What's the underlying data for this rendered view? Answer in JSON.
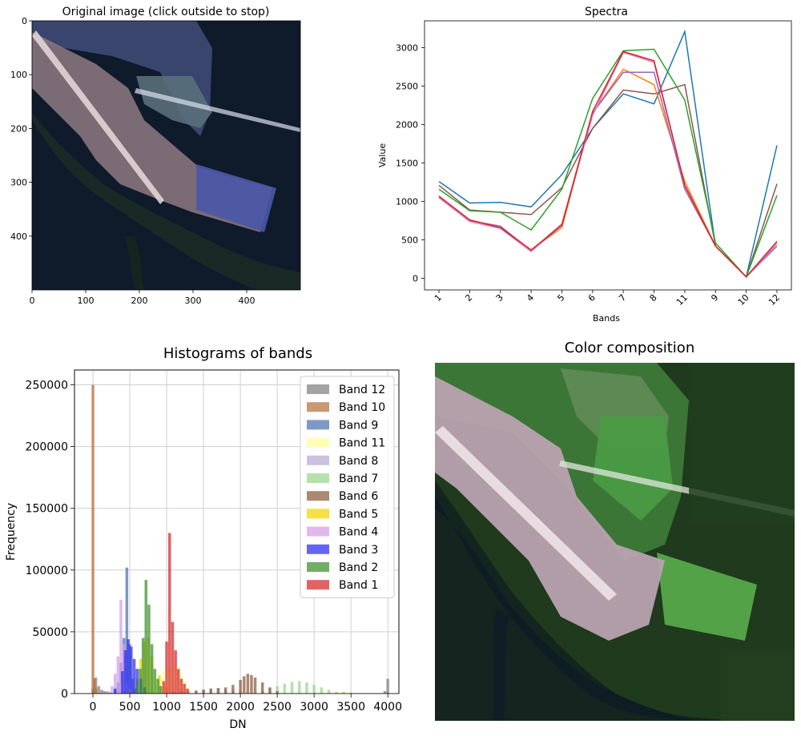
{
  "original_panel": {
    "title": "Original image (click outside to stop)",
    "x_ticks": [
      "0",
      "100",
      "200",
      "300",
      "400"
    ],
    "y_ticks": [
      "0",
      "100",
      "200",
      "300",
      "400"
    ]
  },
  "composition_panel": {
    "title": "Color composition"
  },
  "chart_data": [
    {
      "type": "line",
      "title": "Spectra",
      "xlabel": "Bands",
      "ylabel": "Value",
      "categories": [
        "1",
        "2",
        "3",
        "4",
        "5",
        "6",
        "7",
        "8",
        "11",
        "9",
        "10",
        "12"
      ],
      "ylim": [
        -150,
        3350
      ],
      "yticks": [
        0,
        500,
        1000,
        1500,
        2000,
        2500,
        3000
      ],
      "series": [
        {
          "color": "#1f77b4",
          "values": [
            1260,
            980,
            990,
            930,
            1350,
            1950,
            2400,
            2270,
            3210,
            420,
            20,
            1730
          ]
        },
        {
          "color": "#8c564b",
          "values": [
            1210,
            890,
            860,
            830,
            1180,
            1950,
            2450,
            2400,
            2520,
            420,
            20,
            1230
          ]
        },
        {
          "color": "#2ca02c",
          "values": [
            1160,
            880,
            860,
            630,
            1160,
            2340,
            2960,
            2980,
            2320,
            460,
            20,
            1080
          ]
        },
        {
          "color": "#ff7f0e",
          "values": [
            1060,
            760,
            660,
            370,
            660,
            2150,
            2720,
            2520,
            1260,
            420,
            20,
            480
          ]
        },
        {
          "color": "#9467bd",
          "values": [
            1050,
            750,
            680,
            360,
            710,
            2150,
            2680,
            2680,
            1160,
            420,
            20,
            420
          ]
        },
        {
          "color": "#e377c2",
          "values": [
            1050,
            740,
            650,
            350,
            700,
            2120,
            2940,
            2810,
            1200,
            420,
            20,
            450
          ]
        },
        {
          "color": "#d62728",
          "values": [
            1070,
            760,
            660,
            370,
            690,
            2170,
            2950,
            2830,
            1210,
            420,
            20,
            480
          ]
        }
      ]
    },
    {
      "type": "bar",
      "title": "Histograms of bands",
      "xlabel": "DN",
      "ylabel": "Frequency",
      "xlim": [
        -250,
        4150
      ],
      "ylim": [
        0,
        262000
      ],
      "xticks": [
        0,
        500,
        1000,
        1500,
        2000,
        2500,
        3000,
        3500,
        4000
      ],
      "yticks": [
        0,
        50000,
        100000,
        150000,
        200000,
        250000
      ],
      "grid": true,
      "legend_position": "top-right",
      "series": [
        {
          "name": "Band 12",
          "color": "#7f7f7f",
          "x": [
            0,
            40,
            80,
            120,
            160,
            200,
            240,
            3960,
            4000
          ],
          "values": [
            4000,
            13000,
            6000,
            3000,
            2000,
            1500,
            1000,
            2000,
            12000
          ]
        },
        {
          "name": "Band 10",
          "color": "#b5703a",
          "x": [
            0,
            20,
            40
          ],
          "values": [
            250000,
            12000,
            4000
          ]
        },
        {
          "name": "Band 9",
          "color": "#4c72b0",
          "x": [
            300,
            340,
            380,
            420,
            460,
            500,
            540,
            580
          ],
          "values": [
            3000,
            9000,
            25000,
            45000,
            102000,
            40000,
            12000,
            4000
          ]
        },
        {
          "name": "Band 11",
          "color": "#ffff99",
          "x": [
            800,
            850,
            900,
            950,
            1000,
            1050,
            1100,
            1150,
            1200,
            1250,
            1300
          ],
          "values": [
            6000,
            12000,
            14000,
            18000,
            22000,
            20000,
            24000,
            22000,
            16000,
            10000,
            5000
          ]
        },
        {
          "name": "Band 8",
          "color": "#b9a9d6",
          "x": [
            1000,
            1100,
            1200,
            1300,
            1400,
            1500,
            1600,
            1700,
            1800,
            1900,
            2000
          ],
          "values": [
            1000,
            1500,
            2000,
            2500,
            3000,
            3500,
            4000,
            4000,
            3500,
            3000,
            2500
          ]
        },
        {
          "name": "Band 7",
          "color": "#98d68a",
          "x": [
            2300,
            2400,
            2500,
            2600,
            2700,
            2800,
            2900,
            3000,
            3100,
            3200,
            3300,
            3400
          ],
          "values": [
            2000,
            4000,
            6000,
            8000,
            9500,
            10000,
            9000,
            7000,
            5000,
            3000,
            1500,
            800
          ]
        },
        {
          "name": "Band 6",
          "color": "#8b5a3c",
          "x": [
            1400,
            1500,
            1600,
            1700,
            1800,
            1900,
            2000,
            2050,
            2100,
            2150,
            2200,
            2300,
            2400,
            2500
          ],
          "values": [
            2000,
            3000,
            4000,
            4500,
            5000,
            7000,
            11000,
            14000,
            16000,
            15000,
            13000,
            9000,
            5000,
            2000
          ]
        },
        {
          "name": "Band 5",
          "color": "#f2d200",
          "x": [
            500,
            600,
            650,
            700,
            750,
            800,
            900,
            1000,
            3300,
            3400,
            3500
          ],
          "values": [
            4000,
            12000,
            28000,
            42000,
            45000,
            30000,
            15000,
            5000,
            800,
            1500,
            800
          ]
        },
        {
          "name": "Band 4",
          "color": "#d59ce8",
          "x": [
            200,
            260,
            300,
            340,
            380,
            420,
            460
          ],
          "values": [
            2000,
            6000,
            16000,
            30000,
            76000,
            40000,
            8000
          ]
        },
        {
          "name": "Band 3",
          "color": "#2b2bf2",
          "x": [
            300,
            400,
            440,
            480,
            520,
            560,
            600,
            650,
            700
          ],
          "values": [
            4000,
            18000,
            35000,
            44000,
            38000,
            28000,
            20000,
            12000,
            5000
          ]
        },
        {
          "name": "Band 2",
          "color": "#3a8f2a",
          "x": [
            600,
            640,
            680,
            720,
            760,
            800,
            840,
            880,
            920
          ],
          "values": [
            8000,
            20000,
            45000,
            92000,
            72000,
            40000,
            20000,
            12000,
            6000
          ]
        },
        {
          "name": "Band 1",
          "color": "#d62728",
          "x": [
            960,
            1000,
            1040,
            1080,
            1120,
            1160,
            1200,
            1240,
            1280
          ],
          "values": [
            10000,
            42000,
            130000,
            58000,
            35000,
            20000,
            12000,
            8000,
            4000
          ]
        }
      ]
    }
  ]
}
